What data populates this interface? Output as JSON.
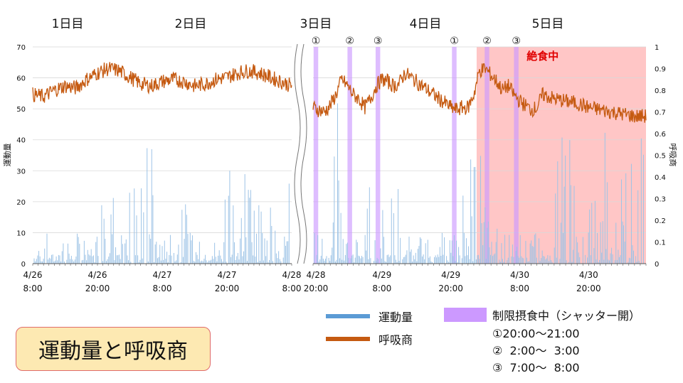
{
  "chart_data": {
    "type": "line",
    "title": "運動量と呼吸商",
    "day_labels": [
      "1日目",
      "2日目",
      "3日目",
      "4日目",
      "5日目"
    ],
    "y_left": {
      "label": "運動量",
      "range": [
        0,
        70
      ],
      "ticks": [
        "0",
        "10",
        "20",
        "30",
        "40",
        "50",
        "60",
        "70"
      ]
    },
    "y_right": {
      "label": "呼吸商",
      "range": [
        0,
        1
      ],
      "ticks": [
        "0",
        "0.1",
        "0.2",
        "0.3",
        "0.4",
        "0.5",
        "0.6",
        "0.7",
        "0.8",
        "0.9",
        "1"
      ]
    },
    "x_tick_labels_left": [
      {
        "l1": "4/26",
        "l2": "8:00"
      },
      {
        "l1": "4/26",
        "l2": "20:00"
      },
      {
        "l1": "4/27",
        "l2": "8:00"
      },
      {
        "l1": "4/27",
        "l2": "20:00"
      },
      {
        "l1": "4/28",
        "l2": "8:00"
      }
    ],
    "x_tick_labels_right": [
      {
        "l1": "4/28",
        "l2": "20:00"
      },
      {
        "l1": "4/29",
        "l2": "8:00"
      },
      {
        "l1": "4/29",
        "l2": "20:00"
      },
      {
        "l1": "4/30",
        "l2": "8:00"
      },
      {
        "l1": "4/30",
        "l2": "20:00"
      }
    ],
    "series": [
      {
        "name": "運動量",
        "color": "#5b9bd5",
        "axis": "left"
      },
      {
        "name": "呼吸商",
        "color": "#c55a11",
        "axis": "right"
      }
    ],
    "restricted_feeding": {
      "label": "制限摂食中（シャッター開）",
      "color": "#cc99ff",
      "windows": [
        "①20:00〜21:00",
        "②  2:00〜  3:00",
        "③  7:00〜  8:00"
      ],
      "markers": [
        "①",
        "②",
        "③",
        "①",
        "②",
        "③"
      ]
    },
    "fasting": {
      "label": "絶食中",
      "color": "#ffb3b3"
    },
    "rq_profile_left": [
      [
        0,
        0.78
      ],
      [
        2,
        0.77
      ],
      [
        4,
        0.8
      ],
      [
        6,
        0.82
      ],
      [
        8,
        0.81
      ],
      [
        10,
        0.85
      ],
      [
        12,
        0.88
      ],
      [
        14,
        0.9
      ],
      [
        16,
        0.89
      ],
      [
        18,
        0.86
      ],
      [
        20,
        0.83
      ],
      [
        22,
        0.82
      ],
      [
        24,
        0.84
      ],
      [
        26,
        0.85
      ],
      [
        28,
        0.84
      ],
      [
        30,
        0.82
      ],
      [
        32,
        0.83
      ],
      [
        34,
        0.85
      ],
      [
        36,
        0.86
      ],
      [
        38,
        0.88
      ],
      [
        40,
        0.89
      ],
      [
        42,
        0.88
      ],
      [
        44,
        0.86
      ],
      [
        46,
        0.84
      ],
      [
        48,
        0.82
      ]
    ],
    "rq_profile_right": [
      [
        12,
        0.72
      ],
      [
        14,
        0.7
      ],
      [
        15,
        0.73
      ],
      [
        16,
        0.78
      ],
      [
        17,
        0.85
      ],
      [
        18,
        0.82
      ],
      [
        19,
        0.78
      ],
      [
        20,
        0.76
      ],
      [
        21,
        0.72
      ],
      [
        22,
        0.76
      ],
      [
        23,
        0.82
      ],
      [
        24,
        0.85
      ],
      [
        25,
        0.84
      ],
      [
        26,
        0.82
      ],
      [
        27,
        0.83
      ],
      [
        28,
        0.88
      ],
      [
        29,
        0.86
      ],
      [
        30,
        0.84
      ],
      [
        31,
        0.82
      ],
      [
        32,
        0.8
      ],
      [
        33,
        0.78
      ],
      [
        34,
        0.76
      ],
      [
        35,
        0.74
      ],
      [
        36,
        0.72
      ],
      [
        37,
        0.71
      ],
      [
        38,
        0.72
      ],
      [
        39,
        0.72
      ],
      [
        40,
        0.78
      ],
      [
        41,
        0.89
      ],
      [
        42,
        0.9
      ],
      [
        43,
        0.87
      ],
      [
        44,
        0.84
      ],
      [
        45,
        0.8
      ],
      [
        46,
        0.82
      ],
      [
        47,
        0.78
      ],
      [
        48,
        0.75
      ],
      [
        49,
        0.73
      ],
      [
        50,
        0.71
      ],
      [
        51,
        0.72
      ],
      [
        52,
        0.78
      ],
      [
        53,
        0.77
      ],
      [
        54,
        0.76
      ],
      [
        56,
        0.75
      ],
      [
        58,
        0.74
      ],
      [
        60,
        0.72
      ],
      [
        62,
        0.71
      ],
      [
        64,
        0.7
      ],
      [
        66,
        0.69
      ],
      [
        68,
        0.68
      ],
      [
        70,
        0.68
      ]
    ]
  },
  "legend": {
    "activity_label": "運動量",
    "rq_label": "呼吸商",
    "feeding_label": "制限摂食中（シャッター開）",
    "window1": "①20:00〜21:00",
    "window2": "②  2:00〜  3:00",
    "window3": "③  7:00〜  8:00"
  },
  "title_box": "運動量と呼吸商",
  "fasting_label": "絶食中"
}
